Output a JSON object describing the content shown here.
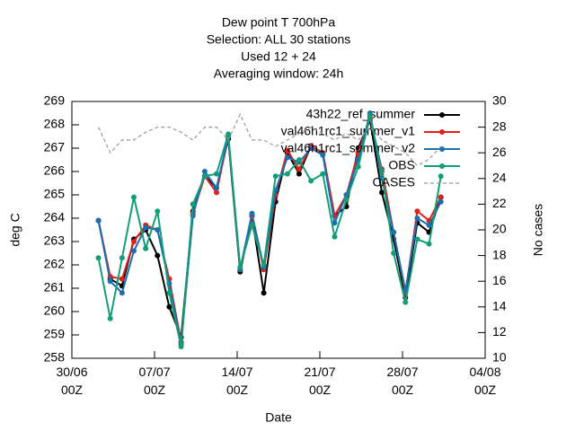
{
  "chart_data": {
    "type": "line",
    "title": [
      "Dew point T 700hPa",
      "Selection: ALL      30 stations",
      "Used  12  + 24",
      "Averaging window: 24h"
    ],
    "x_label": "Date",
    "y_label": "deg C",
    "y2_label": "No cases",
    "x": [
      2.25,
      3.25,
      4.25,
      5.25,
      6.25,
      7.25,
      8.25,
      9.25,
      10.25,
      11.25,
      12.25,
      13.25,
      14.25,
      15.25,
      16.25,
      17.25,
      18.25,
      19.25,
      20.25,
      21.25,
      22.25,
      23.25,
      24.25,
      25.25,
      26.25,
      27.25,
      28.25,
      29.25,
      30.25,
      31.25
    ],
    "xlim": [
      0,
      35
    ],
    "xticks": [
      {
        "value": 0,
        "label": "30/06\n00Z"
      },
      {
        "value": 7,
        "label": "07/07\n00Z"
      },
      {
        "value": 14,
        "label": "14/07\n00Z"
      },
      {
        "value": 21,
        "label": "21/07\n00Z"
      },
      {
        "value": 28,
        "label": "28/07\n00Z"
      },
      {
        "value": 35,
        "label": "04/08\n00Z"
      }
    ],
    "ylim": [
      258,
      269
    ],
    "yticks": [
      258,
      259,
      260,
      261,
      262,
      263,
      264,
      265,
      266,
      267,
      268,
      269
    ],
    "y2lim": [
      10,
      30
    ],
    "y2ticks": [
      10,
      12,
      14,
      16,
      18,
      20,
      22,
      24,
      26,
      28,
      30
    ],
    "legend": "top-right",
    "series": [
      {
        "name": "43h22_ref_summer",
        "color": "#000000",
        "values": [
          263.9,
          261.4,
          261.1,
          263.1,
          263.5,
          262.4,
          260.2,
          258.9,
          264.3,
          265.8,
          265.3,
          267.4,
          261.7,
          264.1,
          260.8,
          264.7,
          266.8,
          265.9,
          267.1,
          266.8,
          264.1,
          264.5,
          267.0,
          268.2,
          265.1,
          263.1,
          260.6,
          263.8,
          263.4,
          264.9
        ]
      },
      {
        "name": "val46h1rc1_summer_v1",
        "color": "#e0201b",
        "values": [
          263.9,
          261.5,
          261.4,
          263.0,
          263.7,
          263.5,
          261.4,
          258.7,
          264.2,
          265.8,
          265.1,
          267.5,
          261.8,
          264.1,
          261.8,
          265.0,
          266.9,
          266.1,
          267.1,
          266.8,
          264.1,
          265.0,
          266.8,
          268.3,
          266.1,
          263.4,
          260.8,
          264.3,
          263.9,
          264.9
        ]
      },
      {
        "name": "val46h1rc1_summer_v2",
        "color": "#1a6fb0",
        "values": [
          263.9,
          261.3,
          260.8,
          262.6,
          263.6,
          263.5,
          261.2,
          258.6,
          264.1,
          266.0,
          265.3,
          267.5,
          261.8,
          264.2,
          261.9,
          265.2,
          266.6,
          266.4,
          267.0,
          266.7,
          263.8,
          265.0,
          266.5,
          268.5,
          265.7,
          263.4,
          260.9,
          264.0,
          263.7,
          264.7
        ]
      },
      {
        "name": "OBS",
        "color": "#129e78",
        "values": [
          262.3,
          259.7,
          262.3,
          264.9,
          262.7,
          264.3,
          260.8,
          258.5,
          264.6,
          265.8,
          265.9,
          267.6,
          261.9,
          263.7,
          262.0,
          265.8,
          265.9,
          266.5,
          265.6,
          265.9,
          263.2,
          264.8,
          266.2,
          268.4,
          266.0,
          262.5,
          260.4,
          263.1,
          262.9,
          265.8
        ]
      },
      {
        "name": "CASES",
        "color": "#999999",
        "axis": "y2",
        "dashed": true,
        "values": [
          28,
          26,
          27,
          27,
          27.6,
          28,
          28,
          27.6,
          27,
          28,
          28,
          27,
          29,
          27,
          27,
          26.5,
          27,
          27.5,
          28,
          27.5,
          27,
          27.5,
          27,
          28,
          27,
          26.5,
          26,
          25,
          25.5,
          26.5
        ]
      }
    ]
  }
}
